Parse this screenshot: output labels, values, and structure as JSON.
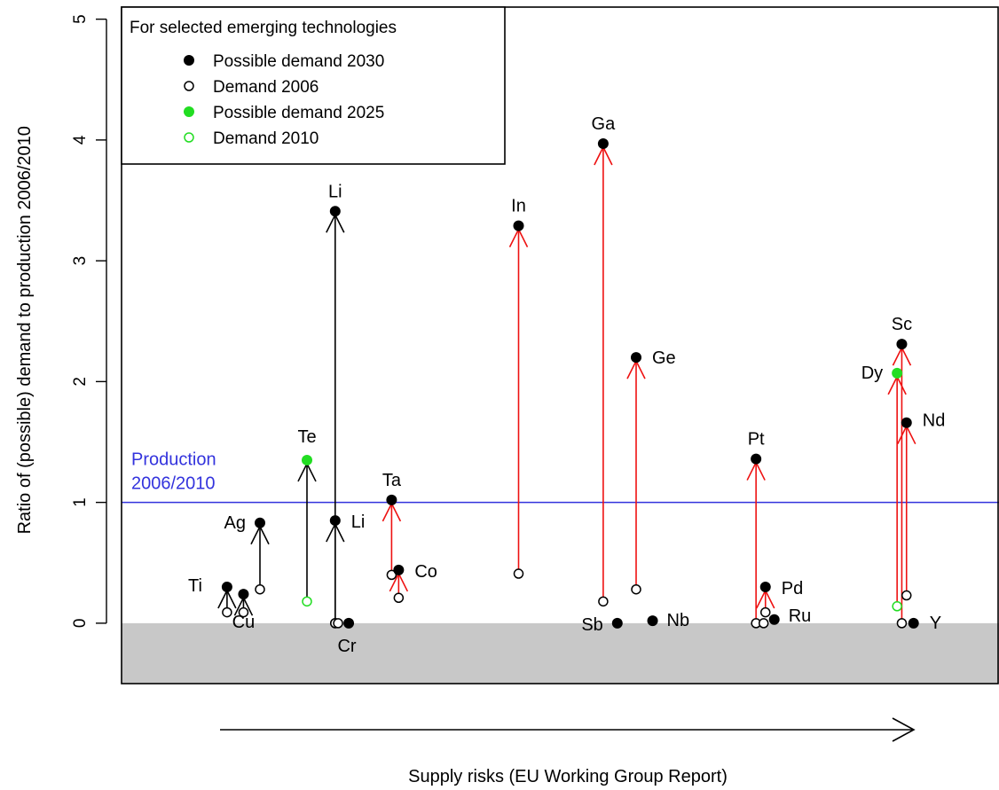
{
  "chart_data": {
    "type": "scatter",
    "title": "",
    "xlabel": "Supply risks (EU Working Group Report)",
    "ylabel": "Ratio of (possible) demand to production 2006/2010",
    "ylim": [
      -0.5,
      5.1
    ],
    "yticks": [
      "0",
      "1",
      "2",
      "3",
      "4",
      "5"
    ],
    "grid": false,
    "colors": {
      "black": "#000000",
      "green": "#22dd22",
      "red": "#ee1111",
      "blue": "#3333dd",
      "shade": "#c8c8c8"
    },
    "legend": {
      "placement": "top-left",
      "title": "For selected emerging technologies",
      "entries": [
        {
          "label": "Possible demand 2030",
          "marker": "filled-black"
        },
        {
          "label": "Demand 2006",
          "marker": "open-black"
        },
        {
          "label": "Possible demand 2025",
          "marker": "filled-green"
        },
        {
          "label": "Demand 2010",
          "marker": "open-green"
        }
      ]
    },
    "reference_line": {
      "y": 1,
      "label_line1": "Production",
      "label_line2": "2006/2010"
    },
    "elements": [
      {
        "name": "Ti",
        "x": 0.6,
        "demand_before": 0.09,
        "demand_future": 0.3,
        "before": "open-black",
        "future": "filled-black",
        "arrow": "black"
      },
      {
        "name": "Cu",
        "x": 1.3,
        "demand_before": 0.09,
        "demand_future": 0.24,
        "before": "open-black",
        "future": "filled-black",
        "arrow": "black"
      },
      {
        "name": "Ag",
        "x": 2.0,
        "demand_before": 0.28,
        "demand_future": 0.83,
        "before": "open-black",
        "future": "filled-black",
        "arrow": "black"
      },
      {
        "name": "Te",
        "x": 4.0,
        "demand_before": 0.18,
        "demand_future": 1.35,
        "before": "open-green",
        "future": "filled-green",
        "arrow": "black"
      },
      {
        "name": "Li",
        "x": 5.2,
        "demand_before": 0.0,
        "demand_future": 3.41,
        "before": "open-black",
        "future": "filled-black",
        "arrow": "black"
      },
      {
        "name": "Li",
        "x": 5.2,
        "demand_before": 0.0,
        "demand_future": 0.85,
        "before": "open-black",
        "future": "filled-black",
        "arrow": "black"
      },
      {
        "name": "Cr",
        "x": 5.7,
        "demand_before": 0.0,
        "demand_future": 0.0,
        "before": "open-black",
        "future": "filled-black",
        "arrow": "none"
      },
      {
        "name": "Ta",
        "x": 7.6,
        "demand_before": 0.4,
        "demand_future": 1.02,
        "before": "open-black",
        "future": "filled-black",
        "arrow": "red"
      },
      {
        "name": "Co",
        "x": 7.9,
        "demand_before": 0.21,
        "demand_future": 0.44,
        "before": "open-black",
        "future": "filled-black",
        "arrow": "red"
      },
      {
        "name": "In",
        "x": 13.0,
        "demand_before": 0.41,
        "demand_future": 3.29,
        "before": "open-black",
        "future": "filled-black",
        "arrow": "red"
      },
      {
        "name": "Ga",
        "x": 16.6,
        "demand_before": 0.18,
        "demand_future": 3.97,
        "before": "open-black",
        "future": "filled-black",
        "arrow": "red"
      },
      {
        "name": "Sb",
        "x": 17.2,
        "demand_before": 0.0,
        "demand_future": 0.0,
        "before": "none",
        "future": "filled-black",
        "arrow": "none"
      },
      {
        "name": "Ge",
        "x": 18.0,
        "demand_before": 0.28,
        "demand_future": 2.2,
        "before": "open-black",
        "future": "filled-black",
        "arrow": "red"
      },
      {
        "name": "Nb",
        "x": 18.7,
        "demand_before": 0.02,
        "demand_future": 0.02,
        "before": "none",
        "future": "filled-black",
        "arrow": "none"
      },
      {
        "name": "Pt",
        "x": 23.1,
        "demand_before": 0.0,
        "demand_future": 1.36,
        "before": "open-black",
        "future": "filled-black",
        "arrow": "red"
      },
      {
        "name": "Pd",
        "x": 23.5,
        "demand_before": 0.09,
        "demand_future": 0.3,
        "before": "open-black",
        "future": "filled-black",
        "arrow": "red"
      },
      {
        "name": "Ru",
        "x": 23.8,
        "demand_before": 0.0,
        "demand_future": 0.03,
        "before": "open-black",
        "future": "filled-black",
        "arrow": "none"
      },
      {
        "name": "Dy",
        "x": 29.1,
        "demand_before": 0.14,
        "demand_future": 2.07,
        "before": "open-green",
        "future": "filled-green",
        "arrow": "red"
      },
      {
        "name": "Sc",
        "x": 29.3,
        "demand_before": 0.0,
        "demand_future": 2.31,
        "before": "open-black",
        "future": "filled-black",
        "arrow": "red"
      },
      {
        "name": "Nd",
        "x": 29.5,
        "demand_before": 0.23,
        "demand_future": 1.66,
        "before": "open-black",
        "future": "filled-black",
        "arrow": "red"
      },
      {
        "name": "Y",
        "x": 29.8,
        "demand_before": 0.0,
        "demand_future": 0.0,
        "before": "none",
        "future": "filled-black",
        "arrow": "none"
      }
    ]
  }
}
